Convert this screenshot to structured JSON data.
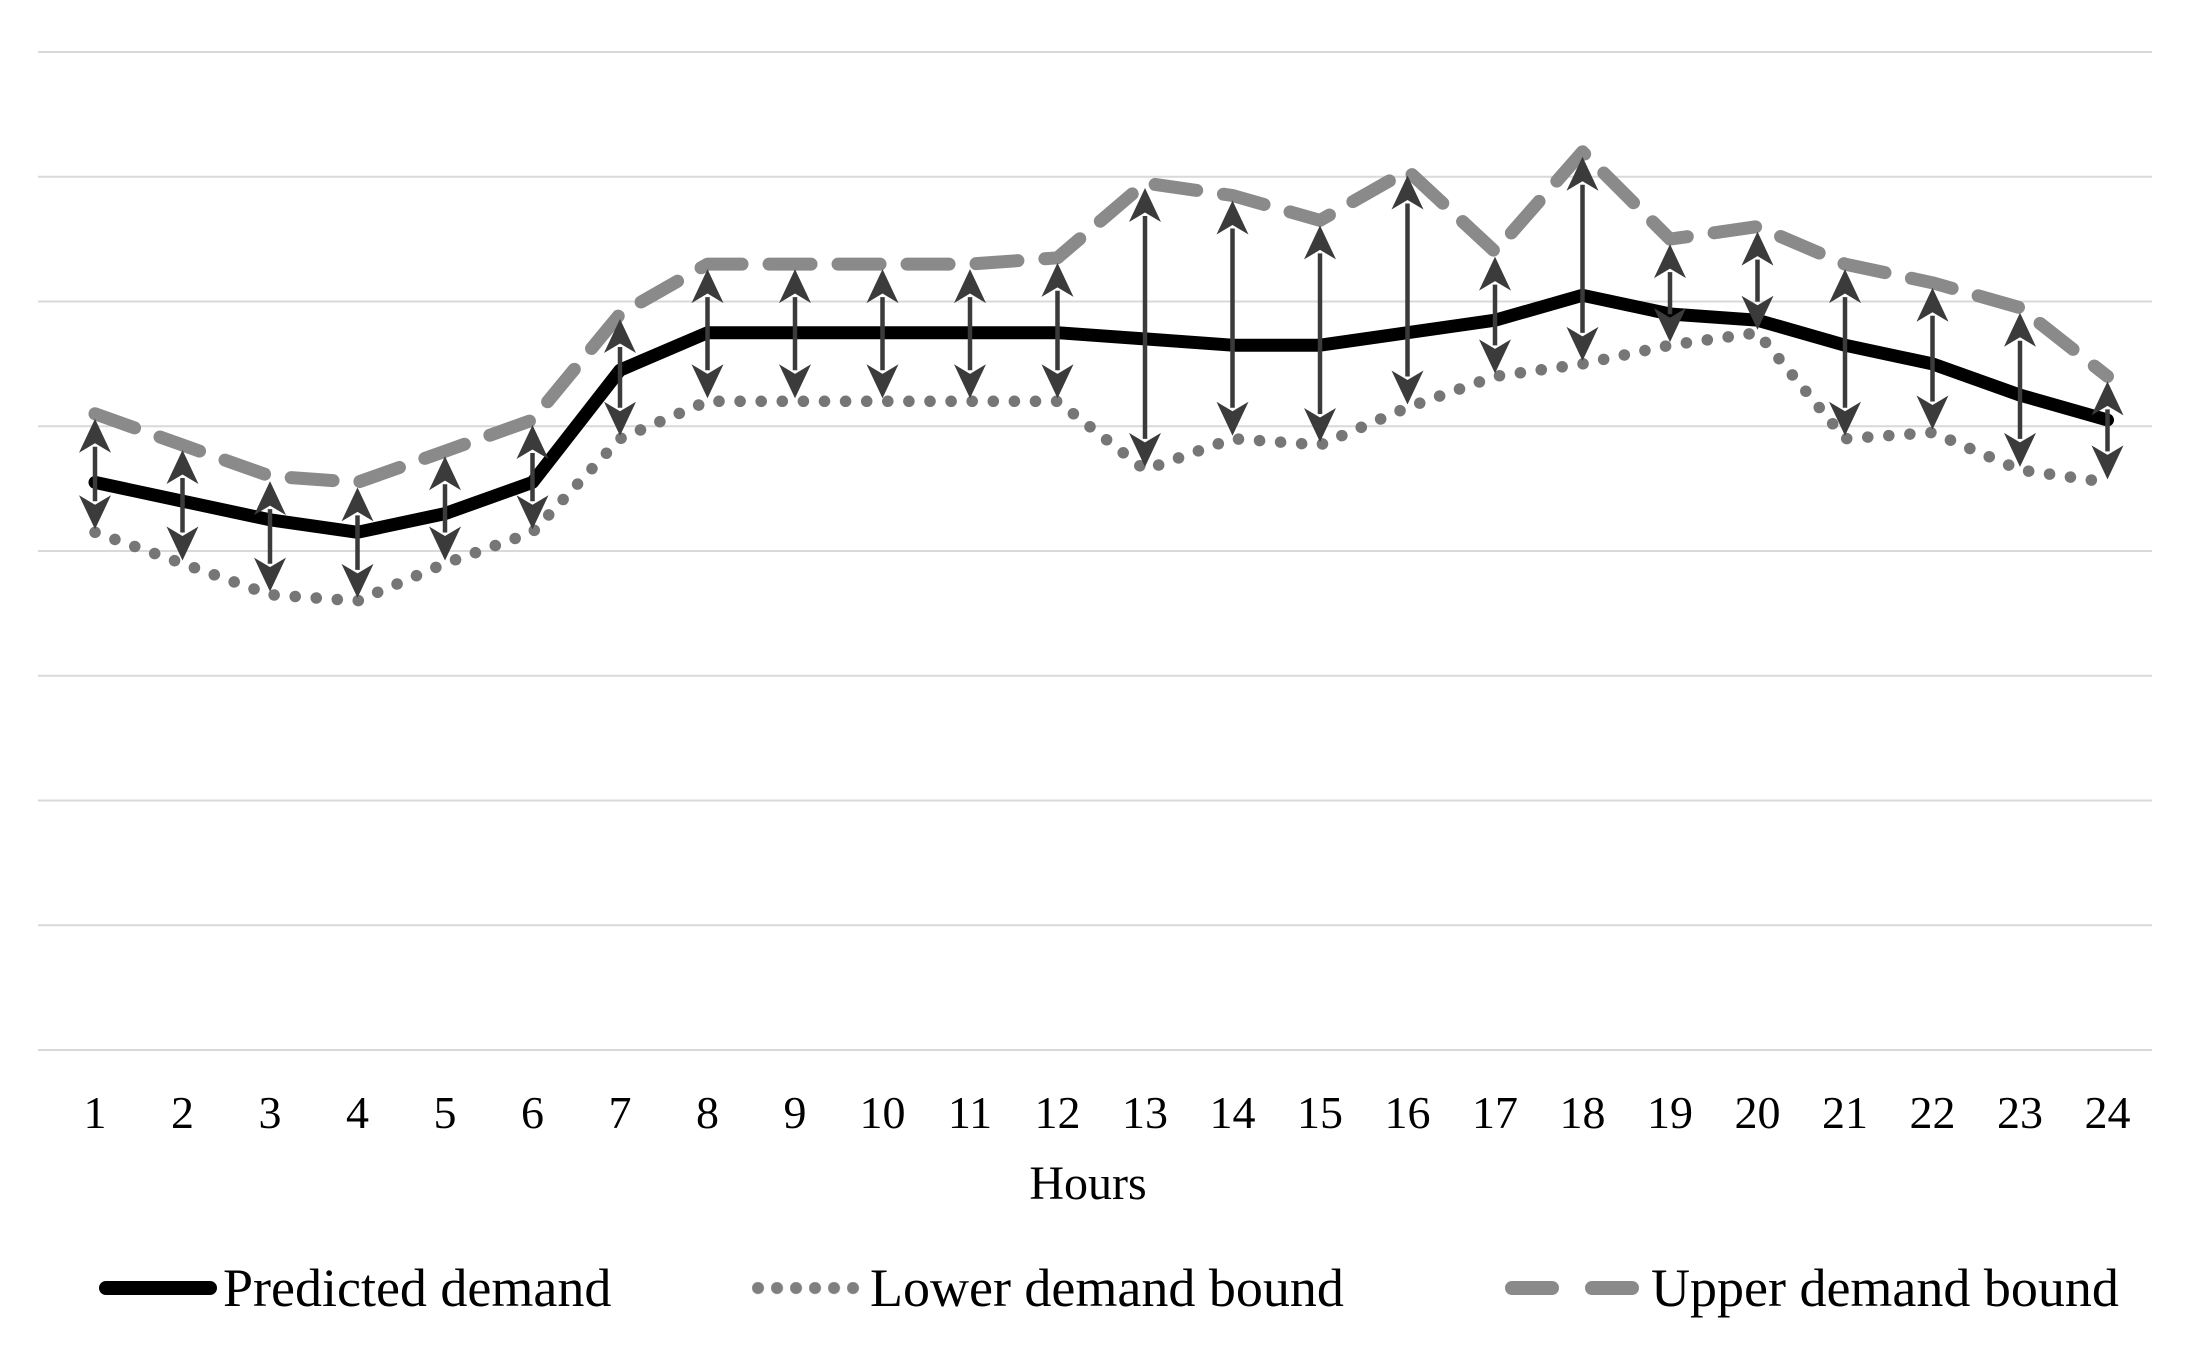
{
  "chart_data": {
    "type": "line",
    "title": "",
    "xlabel": "Hours",
    "ylabel": "",
    "x": [
      1,
      2,
      3,
      4,
      5,
      6,
      7,
      8,
      9,
      10,
      11,
      12,
      13,
      14,
      15,
      16,
      17,
      18,
      19,
      20,
      21,
      22,
      23,
      24
    ],
    "categories": [
      "1",
      "2",
      "3",
      "4",
      "5",
      "6",
      "7",
      "8",
      "9",
      "10",
      "11",
      "12",
      "13",
      "14",
      "15",
      "16",
      "17",
      "18",
      "19",
      "20",
      "21",
      "22",
      "23",
      "24"
    ],
    "series": [
      {
        "name": "Predicted demand",
        "style": "solid",
        "color": "#000000",
        "values": [
          45.5,
          44,
          42.5,
          41.5,
          43,
          45.5,
          54.5,
          57.5,
          57.5,
          57.5,
          57.5,
          57.5,
          57,
          56.5,
          56.5,
          57.5,
          58.5,
          60.5,
          59,
          58.5,
          56.5,
          55,
          52.5,
          50.5
        ]
      },
      {
        "name": "Lower demand bound",
        "style": "dotted",
        "color": "#767676",
        "values": [
          41.5,
          39,
          36.5,
          36,
          39,
          41.5,
          49,
          52,
          52,
          52,
          52,
          52,
          46.5,
          49,
          48.5,
          51.5,
          54,
          55,
          56.5,
          57.5,
          49,
          49.5,
          46.5,
          45.5
        ]
      },
      {
        "name": "Upper demand bound",
        "style": "dashed",
        "color": "#8a8a8a",
        "values": [
          51,
          48.5,
          46,
          45.5,
          48,
          50.5,
          59,
          63,
          63,
          63,
          63,
          63.5,
          69.5,
          68.5,
          66.5,
          70.5,
          64,
          72,
          65,
          66,
          63,
          61.5,
          59.5,
          54
        ]
      }
    ],
    "ylim": [
      0,
      80
    ],
    "gridlines_y": [
      0,
      10,
      20,
      30,
      40,
      50,
      60,
      70,
      80
    ],
    "y_axis_labels_shown": false,
    "units": "arbitrary (no y-axis tick labels shown)",
    "grid": "horizontal gridlines only",
    "legend_position": "bottom",
    "annotations": "vertical double-headed arrows between lower and upper demand bound at every hour"
  },
  "axis": {
    "xlabel": "Hours"
  },
  "legend": {
    "items": [
      {
        "label": "Predicted demand"
      },
      {
        "label": "Lower demand bound"
      },
      {
        "label": "Upper demand bound"
      }
    ]
  },
  "colors": {
    "predicted": "#000000",
    "lower_bound": "#767676",
    "upper_bound": "#8a8a8a",
    "arrows": "#3b3b3b",
    "gridlines": "#d9d9d9",
    "text": "#000000",
    "background": "#ffffff"
  }
}
